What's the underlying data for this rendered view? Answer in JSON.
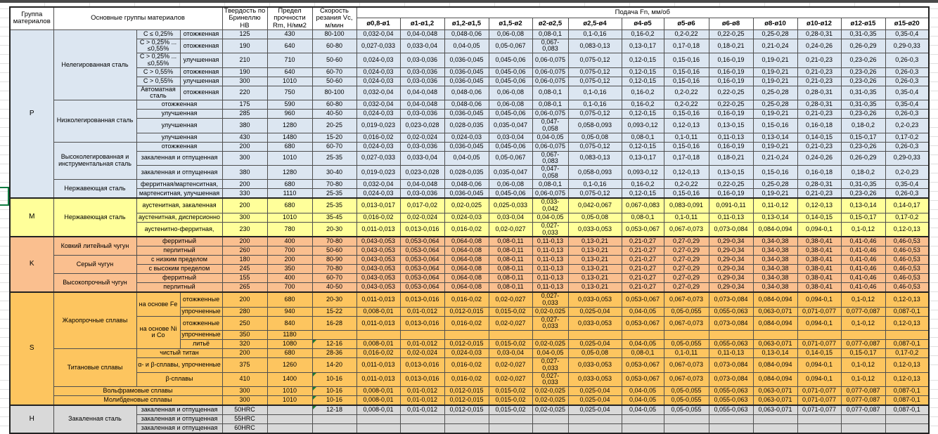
{
  "header": {
    "group_col": "Группа материалов",
    "main_groups_col": "Основные группы материалов",
    "hardness_col": "Твердость по Бринеллю НВ",
    "strength_col": "Предел прочности Rm, Н/мм2",
    "speed_col": "Скорость резания Vc, м/мин",
    "feed_col": "Подача Fn, мм/об",
    "feed_sizes": [
      "ø0,8-ø1",
      "ø1-ø1,2",
      "ø1,2-ø1,5",
      "ø1,5-ø2",
      "ø2-ø2,5",
      "ø2,5-ø4",
      "ø4-ø5",
      "ø5-ø6",
      "ø6-ø8",
      "ø8-ø10",
      "ø10-ø12",
      "ø12-ø15",
      "ø15-ø20"
    ]
  },
  "group_colors": {
    "p": "#DCE6F1",
    "m": "#FFFF9A",
    "k": "#FABF8F",
    "s": "#FDC55F",
    "h": "#D9D9D9"
  },
  "comment_marker_color": "#1E7B34",
  "selection_border_color": "#107C41",
  "feed_sets": {
    "A": [
      "0,032-0,04",
      "0,04-0,048",
      "0,048-0,06",
      "0,06-0,08",
      "0,08-0,1",
      "0,1-0,16",
      "0,16-0,2",
      "0,2-0,22",
      "0,22-0,25",
      "0,25-0,28",
      "0,28-0,31",
      "0,31-0,35",
      "0,35-0,4"
    ],
    "B": [
      "0,027-0,033",
      "0,033-0,04",
      "0,04-0,05",
      "0,05-0,067",
      "0,067-0,083",
      "0,083-0,13",
      "0,13-0,17",
      "0,17-0,18",
      "0,18-0,21",
      "0,21-0,24",
      "0,24-0,26",
      "0,26-0,29",
      "0,29-0,33"
    ],
    "C": [
      "0,024-0,03",
      "0,03-0,036",
      "0,036-0,045",
      "0,045-0,06",
      "0,06-0,075",
      "0,075-0,12",
      "0,12-0,15",
      "0,15-0,16",
      "0,16-0,19",
      "0,19-0,21",
      "0,21-0,23",
      "0,23-0,26",
      "0,26-0,3"
    ],
    "D": [
      "0,019-0,023",
      "0,023-0,028",
      "0,028-0,035",
      "0,035-0,047",
      "0,047-0,058",
      "0,058-0,093",
      "0,093-0,12",
      "0,12-0,13",
      "0,13-0,15",
      "0,15-0,16",
      "0,16-0,18",
      "0,18-0,2",
      "0,2-0,23"
    ],
    "E": [
      "0,016-0,02",
      "0,02-0,024",
      "0,024-0,03",
      "0,03-0,04",
      "0,04-0,05",
      "0,05-0,08",
      "0,08-0,1",
      "0,1-0,11",
      "0,11-0,13",
      "0,13-0,14",
      "0,14-0,15",
      "0,15-0,17",
      "0,17-0,2"
    ],
    "F": [
      "0,013-0,017",
      "0,017-0,02",
      "0,02-0,025",
      "0,025-0,033",
      "0,033-0,042",
      "0,042-0,067",
      "0,067-0,083",
      "0,083-0,091",
      "0,091-0,11",
      "0,11-0,12",
      "0,12-0,13",
      "0,13-0,14",
      "0,14-0,17"
    ],
    "G": [
      "0,011-0,013",
      "0,013-0,016",
      "0,016-0,02",
      "0,02-0,027",
      "0,027-0,033",
      "0,033-0,053",
      "0,053-0,067",
      "0,067-0,073",
      "0,073-0,084",
      "0,084-0,094",
      "0,094-0,1",
      "0,1-0,12",
      "0,12-0,13"
    ],
    "H": [
      "0,043-0,053",
      "0,053-0,064",
      "0,064-0,08",
      "0,08-0,11",
      "0,11-0,13",
      "0,13-0,21",
      "0,21-0,27",
      "0,27-0,29",
      "0,29-0,34",
      "0,34-0,38",
      "0,38-0,41",
      "0,41-0,46",
      "0,46-0,53"
    ],
    "I": [
      "0,008-0,01",
      "0,01-0,012",
      "0,012-0,015",
      "0,015-0,02",
      "0,02-0,025",
      "0,025-0,04",
      "0,04-0,05",
      "0,05-0,055",
      "0,055-0,063",
      "0,063-0,071",
      "0,071-0,077",
      "0,077-0,087",
      "0,087-0,1"
    ]
  },
  "rows": [
    {
      "g": {
        "t": "P",
        "rs": 15
      },
      "cls": "p",
      "b": [
        {
          "t": "Нелегированная сталь",
          "rs": 6
        },
        {
          "t": "C ≤ 0,25%"
        },
        {
          "t": "отожженная"
        }
      ],
      "hb": "125",
      "rm": "430",
      "vc": "80-100",
      "feeds": "A"
    },
    {
      "cls": "p",
      "tall": 1,
      "b": [
        {
          "t": "C > 0,25% ... ≤0,55%"
        },
        {
          "t": "отожженная"
        }
      ],
      "hb": "190",
      "rm": "640",
      "vc": "60-80",
      "feeds": "B"
    },
    {
      "cls": "p",
      "tall": 1,
      "b": [
        {
          "t": "C > 0,25% ... ≤0,55%"
        },
        {
          "t": "улучшенная"
        }
      ],
      "hb": "210",
      "rm": "710",
      "vc": "50-60",
      "feeds": "C"
    },
    {
      "cls": "p",
      "b": [
        {
          "t": "C > 0,55%"
        },
        {
          "t": "отожженная"
        }
      ],
      "hb": "190",
      "rm": "640",
      "vc": "60-70",
      "feeds": "C"
    },
    {
      "cls": "p",
      "b": [
        {
          "t": "C > 0,55%"
        },
        {
          "t": "улучшенная"
        }
      ],
      "hb": "300",
      "rm": "1010",
      "vc": "50-60",
      "feeds": "C"
    },
    {
      "cls": "p",
      "tall": 1,
      "b": [
        {
          "t": "Автоматная сталь"
        },
        {
          "t": "отожженная"
        }
      ],
      "hb": "220",
      "rm": "750",
      "vc": "80-100",
      "feeds": "A"
    },
    {
      "cls": "p",
      "b": [
        {
          "t": "Низколегированная сталь",
          "rs": 4
        },
        {
          "t": "отожженная",
          "cs": 2
        }
      ],
      "hb": "175",
      "rm": "590",
      "vc": "60-80",
      "feeds": "A"
    },
    {
      "cls": "p",
      "b": [
        {
          "t": "улучшенная",
          "cs": 2
        }
      ],
      "hb": "285",
      "rm": "960",
      "vc": "40-50",
      "feeds": "C"
    },
    {
      "cls": "p",
      "b": [
        {
          "t": "улучшенная",
          "cs": 2
        }
      ],
      "hb": "380",
      "rm": "1280",
      "vc": "20-25",
      "feeds": "D"
    },
    {
      "cls": "p",
      "b": [
        {
          "t": "улучшенная",
          "cs": 2
        }
      ],
      "hb": "430",
      "rm": "1480",
      "vc": "15-20",
      "feeds": "E"
    },
    {
      "cls": "p",
      "b": [
        {
          "t": "Высоколегированная и инструментальная сталь",
          "rs": 3
        },
        {
          "t": "отожженная",
          "cs": 2
        }
      ],
      "hb": "200",
      "rm": "680",
      "vc": "60-70",
      "feeds": "C"
    },
    {
      "cls": "p",
      "b": [
        {
          "t": "закаленная и отпущенная",
          "cs": 2
        }
      ],
      "hb": "300",
      "rm": "1010",
      "vc": "25-35",
      "feeds": "B"
    },
    {
      "cls": "p",
      "b": [
        {
          "t": "закаленная и отпущенная",
          "cs": 2
        }
      ],
      "hb": "380",
      "rm": "1280",
      "vc": "30-40",
      "feeds": "D"
    },
    {
      "cls": "p",
      "b": [
        {
          "t": "Нержавеющая сталь",
          "rs": 2
        },
        {
          "t": "ферритная/мартенситная,",
          "cs": 2
        }
      ],
      "hb": "200",
      "rm": "680",
      "vc": "70-80",
      "feeds": "A"
    },
    {
      "cls": "p",
      "b": [
        {
          "t": "мартенситная, улучшенная",
          "cs": 2
        }
      ],
      "hb": "330",
      "rm": "1110",
      "vc": "25-35",
      "feeds": "C"
    },
    {
      "g": {
        "t": "M",
        "rs": 3
      },
      "sep": 1,
      "cls": "m",
      "b": [
        {
          "t": "Нержавеющая сталь",
          "rs": 3
        },
        {
          "t": "аустенитная, закаленная",
          "cs": 2
        }
      ],
      "hb": "200",
      "rm": "680",
      "vc": "25-35",
      "feeds": "F"
    },
    {
      "cls": "m",
      "b": [
        {
          "t": "аустенитная, дисперсионно",
          "cs": 2
        }
      ],
      "hb": "300",
      "rm": "1010",
      "vc": "35-45",
      "feeds": "E"
    },
    {
      "cls": "m",
      "b": [
        {
          "t": "аустенитно-ферритная,",
          "cs": 2
        }
      ],
      "hb": "230",
      "rm": "780",
      "vc": "20-30",
      "feeds": "G"
    },
    {
      "g": {
        "t": "K",
        "rs": 6
      },
      "sep": 1,
      "cls": "k",
      "b": [
        {
          "t": "Ковкий литейный чугун",
          "rs": 2
        },
        {
          "t": "ферритный",
          "cs": 2
        }
      ],
      "hb": "200",
      "rm": "400",
      "vc": "70-80",
      "feeds": "H"
    },
    {
      "cls": "k",
      "b": [
        {
          "t": "перлитный",
          "cs": 2
        }
      ],
      "hb": "260",
      "rm": "700",
      "vc": "50-60",
      "feeds": "H"
    },
    {
      "cls": "k",
      "b": [
        {
          "t": "Серый чугун",
          "rs": 2
        },
        {
          "t": "с низким пределом",
          "cs": 2
        }
      ],
      "hb": "180",
      "rm": "200",
      "vc": "80-90",
      "feeds": "H"
    },
    {
      "cls": "k",
      "b": [
        {
          "t": "с высоким пределом",
          "cs": 2
        }
      ],
      "hb": "245",
      "rm": "350",
      "vc": "70-80",
      "feeds": "H"
    },
    {
      "cls": "k",
      "b": [
        {
          "t": "Высокопрочный чугун",
          "rs": 2
        },
        {
          "t": "ферритный",
          "cs": 2
        }
      ],
      "hb": "155",
      "rm": "400",
      "vc": "60-70",
      "feeds": "H"
    },
    {
      "cls": "k",
      "b": [
        {
          "t": "перлитный",
          "cs": 2
        }
      ],
      "hb": "265",
      "rm": "700",
      "vc": "40-50",
      "feeds": "H"
    },
    {
      "g": {
        "t": "S",
        "rs": 10
      },
      "sep": 1,
      "cls": "s",
      "b": [
        {
          "t": "Жаропрочные сплавы",
          "rs": 5
        },
        {
          "t": "на основе Fe",
          "rs": 2
        },
        {
          "t": "отожженные"
        }
      ],
      "hb": "200",
      "rm": "680",
      "vc": "20-30",
      "feeds": "G"
    },
    {
      "cls": "s",
      "b": [
        {
          "t": "упрочненные"
        }
      ],
      "hb": "280",
      "rm": "940",
      "vc": "15-22",
      "feeds": "I"
    },
    {
      "cls": "s",
      "b": [
        {
          "t": "на основе Ni и Со",
          "rs": 3
        },
        {
          "t": "отожженные"
        }
      ],
      "hb": "250",
      "rm": "840",
      "vc": "16-28",
      "feeds": "G"
    },
    {
      "cls": "s",
      "b": [
        {
          "t": "упрочненные"
        }
      ],
      "hb": "350",
      "rm": "1180",
      "vc": "",
      "feeds": null
    },
    {
      "cls": "s",
      "b": [
        {
          "t": "литьё"
        }
      ],
      "hb": "320",
      "rm": "1080",
      "vc": "12-16",
      "tri": 1,
      "feeds": "I"
    },
    {
      "cls": "s",
      "b": [
        {
          "t": "Титановые сплавы",
          "rs": 3
        },
        {
          "t": "чистый титан",
          "cs": 2
        }
      ],
      "hb": "200",
      "rm": "680",
      "vc": "28-36",
      "feeds": "E"
    },
    {
      "cls": "s",
      "b": [
        {
          "t": "α- и β-сплавы, упрочненные",
          "cs": 2
        }
      ],
      "hb": "375",
      "rm": "1260",
      "vc": "14-20",
      "feeds": "G"
    },
    {
      "cls": "s",
      "b": [
        {
          "t": "β-сплавы",
          "cs": 2
        }
      ],
      "hb": "410",
      "rm": "1400",
      "vc": "10-16",
      "tri": 1,
      "feeds": "G"
    },
    {
      "cls": "s",
      "b": [
        {
          "t": "Вольфрамовые сплавы",
          "cs": 3
        }
      ],
      "hb": "300",
      "rm": "1010",
      "vc": "10-16",
      "tri": 1,
      "feeds": "I"
    },
    {
      "cls": "s",
      "b": [
        {
          "t": "Молибденовые сплавы",
          "cs": 3
        }
      ],
      "hb": "300",
      "rm": "1010",
      "vc": "10-16",
      "tri": 1,
      "feeds": "I"
    },
    {
      "g": {
        "t": "H",
        "rs": 3
      },
      "sep": 1,
      "cls": "h",
      "b": [
        {
          "t": "Закаленная сталь",
          "rs": 3
        },
        {
          "t": "закаленная и отпущенная",
          "cs": 2
        }
      ],
      "hb": "50HRC",
      "rm": "",
      "vc": "12-18",
      "tri": 1,
      "feeds": "I"
    },
    {
      "cls": "h",
      "b": [
        {
          "t": "закаленная и отпущенная",
          "cs": 2
        }
      ],
      "hb": "55HRC",
      "rm": "",
      "vc": "",
      "feeds": null
    },
    {
      "cls": "h",
      "b": [
        {
          "t": "закаленная и отпущенная",
          "cs": 2
        }
      ],
      "hb": "60HRC",
      "rm": "",
      "vc": "",
      "feeds": null
    }
  ]
}
